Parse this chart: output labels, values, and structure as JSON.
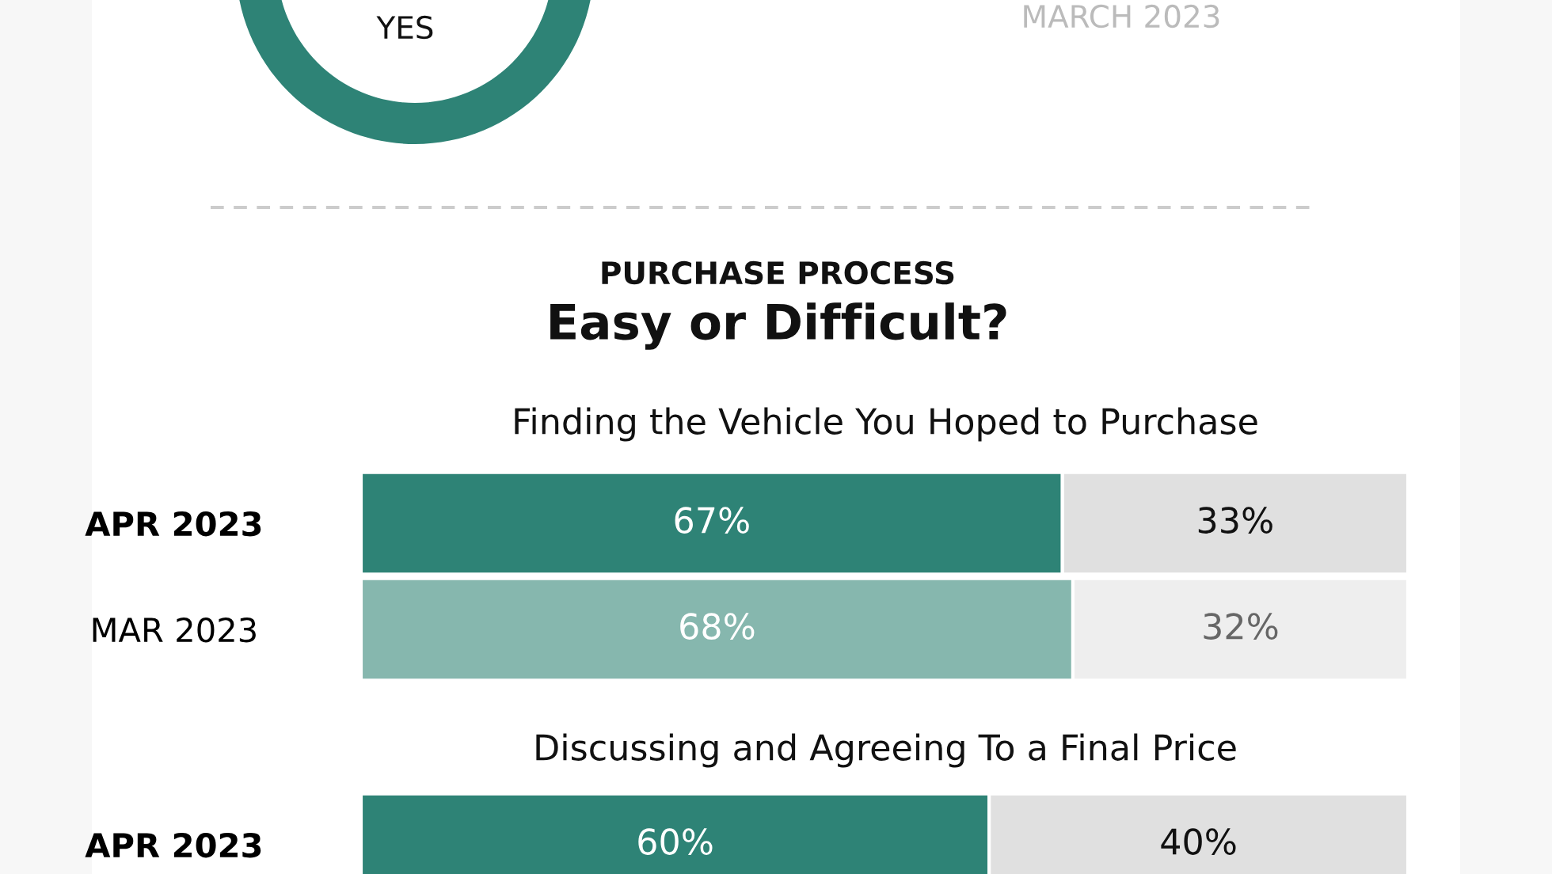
{
  "chart_data": [
    {
      "type": "other",
      "annotations": [
        "YES",
        "MARCH 2023"
      ]
    },
    {
      "type": "bar",
      "orientation": "horizontal",
      "stacked": true,
      "title": "PURCHASE PROCESS",
      "subtitle": "Easy or Difficult?",
      "annotations": [
        "Finding the Vehicle You Hoped to Purchase"
      ],
      "categories": [
        "APR 2023",
        "MAR 2023"
      ],
      "xlim": [
        0,
        100
      ],
      "tick_labels": "y",
      "series": [
        {
          "colors": [
            "#2e8376",
            "#86b7ae"
          ],
          "values": [
            67,
            68
          ],
          "value_labels": [
            "67%",
            "68%"
          ]
        },
        {
          "colors": [
            "#e0e0e0",
            "#eeeeee"
          ],
          "values": [
            33,
            32
          ],
          "value_labels": [
            "33%",
            "32%"
          ]
        }
      ]
    },
    {
      "type": "bar",
      "orientation": "horizontal",
      "stacked": true,
      "annotations": [
        "Discussing and Agreeing To a Final Price"
      ],
      "categories": [
        "APR 2023"
      ],
      "xlim": [
        0,
        100
      ],
      "tick_labels": "y",
      "series": [
        {
          "colors": [
            "#2e8376"
          ],
          "values": [
            60
          ],
          "value_labels": [
            "60%"
          ]
        },
        {
          "colors": [
            "#e0e0e0"
          ],
          "values": [
            40
          ],
          "value_labels": [
            "40%"
          ]
        }
      ]
    }
  ]
}
